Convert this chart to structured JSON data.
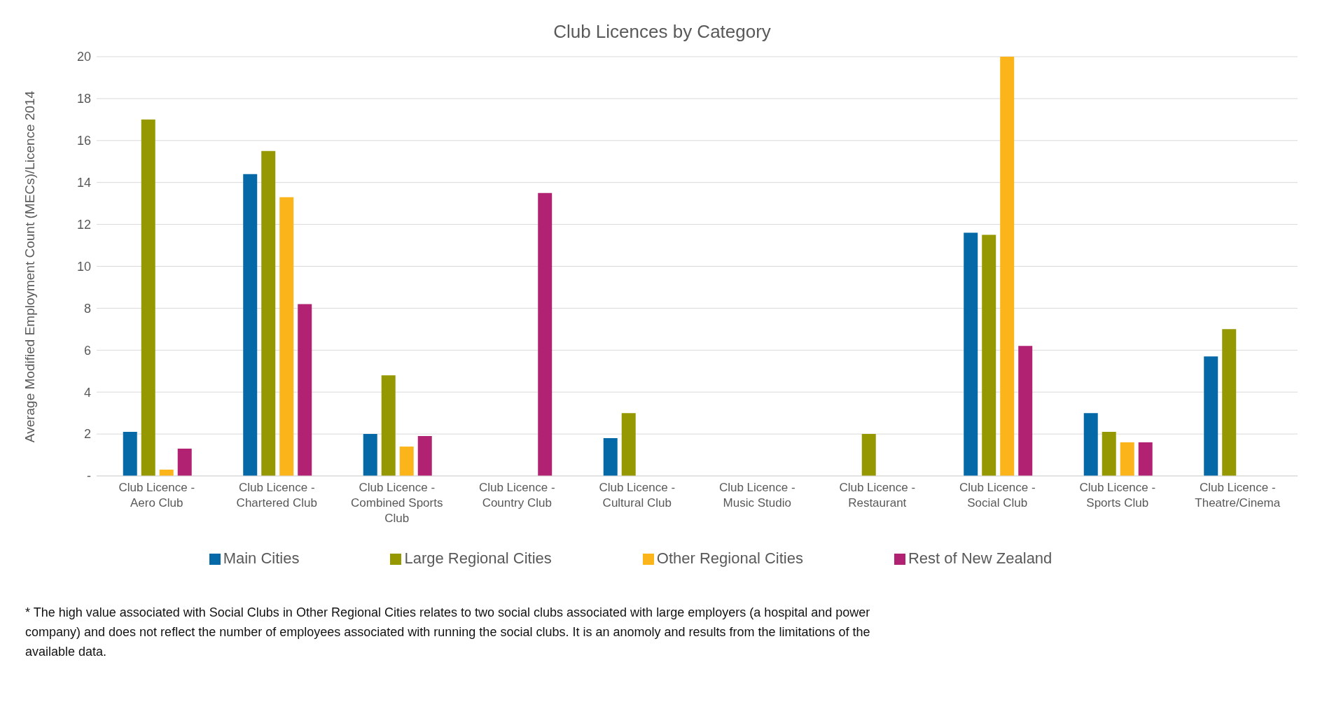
{
  "chart_data": {
    "type": "bar",
    "title": "Club Licences by Category",
    "ylabel": "Average Modified Employment Count (MECs)/Licence 2014",
    "categories": [
      "Club Licence - Aero Club",
      "Club Licence - Chartered Club",
      "Club Licence - Combined Sports Club",
      "Club Licence - Country Club",
      "Club Licence - Cultural Club",
      "Club Licence - Music Studio",
      "Club Licence - Restaurant",
      "Club Licence - Social Club",
      "Club Licence - Sports Club",
      "Club Licence - Theatre/Cinema"
    ],
    "series": [
      {
        "name": "Main Cities",
        "color": "#0569a8",
        "values": [
          2.1,
          14.4,
          2.0,
          null,
          1.8,
          null,
          null,
          11.6,
          3.0,
          5.7
        ]
      },
      {
        "name": "Large Regional Cities",
        "color": "#959800",
        "values": [
          17.0,
          15.5,
          4.8,
          null,
          3.0,
          null,
          2.0,
          11.5,
          2.1,
          7.0
        ]
      },
      {
        "name": "Other Regional Cities",
        "color": "#fbb41a",
        "values": [
          0.3,
          13.3,
          1.4,
          null,
          null,
          null,
          null,
          20.0,
          1.6,
          null
        ]
      },
      {
        "name": "Rest of New Zealand",
        "color": "#b22272",
        "values": [
          1.3,
          8.2,
          1.9,
          13.5,
          null,
          null,
          null,
          6.2,
          1.6,
          null
        ]
      }
    ],
    "ylim": [
      0,
      20
    ],
    "yticks": [
      {
        "value": 0,
        "label": "-"
      },
      2,
      4,
      6,
      8,
      10,
      12,
      14,
      16,
      18,
      20
    ],
    "grid": "y",
    "legend": "bottom",
    "annotations": [
      "* The high value associated with Social Clubs in Other Regional Cities relates to two social clubs associated with large employers (a hospital and power company) and does not reflect the number of employees associated with running the social clubs.  It is an anomoly and results from the limitations of the available data."
    ]
  }
}
